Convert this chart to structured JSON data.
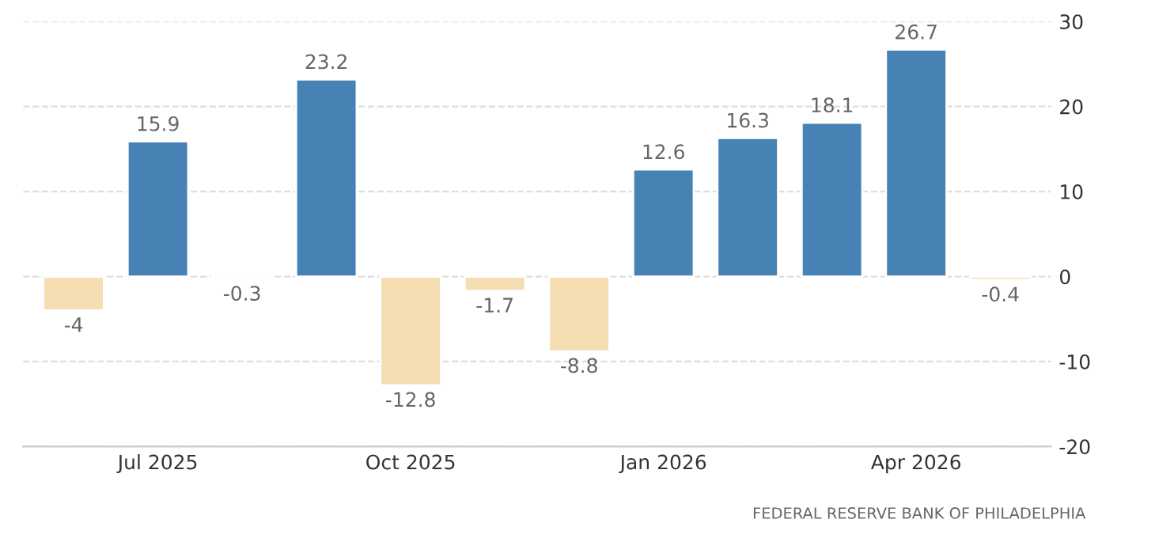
{
  "chart_data": {
    "type": "bar",
    "categories": [
      null,
      "Jul 2025",
      null,
      null,
      "Oct 2025",
      null,
      null,
      "Jan 2026",
      null,
      null,
      "Apr 2026",
      null
    ],
    "values": [
      -4,
      15.9,
      -0.3,
      23.2,
      -12.8,
      -1.7,
      -8.8,
      12.6,
      16.3,
      18.1,
      26.7,
      -0.4
    ],
    "colors": [
      "#f5deb3",
      "#4682b4",
      "#f5deb3",
      "#4682b4",
      "#f5deb3",
      "#f5deb3",
      "#f5deb3",
      "#4682b4",
      "#4682b4",
      "#4682b4",
      "#4682b4",
      "#f5deb3"
    ],
    "ylim": [
      -20,
      30
    ],
    "yticks": [
      -20,
      -10,
      0,
      10,
      20,
      30
    ],
    "grid": "y",
    "data_labels": true,
    "annotations": [
      "FEDERAL RESERVE BANK OF PHILADELPHIA"
    ]
  }
}
